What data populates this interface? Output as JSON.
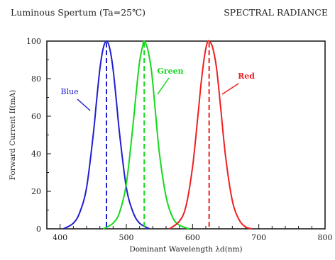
{
  "header": {
    "left_title": "Luminous Spertum (Ta=25℃)",
    "right_title": "SPECTRAL RADIANCE"
  },
  "chart_data": {
    "type": "line",
    "title": "Luminous Spertum (Ta=25℃)",
    "subtitle": "SPECTRAL RADIANCE",
    "xlabel": "Dominant Wavelength λd(nm)",
    "ylabel": "Forward Current If(mA)",
    "xlim": [
      380,
      800
    ],
    "ylim": [
      0,
      100
    ],
    "x_ticks": [
      400,
      500,
      600,
      700,
      800
    ],
    "y_ticks": [
      0,
      20,
      40,
      60,
      80,
      100
    ],
    "grid": false,
    "series": [
      {
        "name": "Blue",
        "color": "#1f1fd0",
        "peak": 470,
        "x": [
          405,
          420,
          430,
          440,
          450,
          455,
          460,
          465,
          470,
          475,
          480,
          485,
          490,
          500,
          510,
          520,
          535
        ],
        "y": [
          0,
          3,
          9,
          22,
          50,
          68,
          85,
          96,
          100,
          96,
          85,
          68,
          50,
          22,
          9,
          3,
          0
        ]
      },
      {
        "name": "Green",
        "color": "#16d81e",
        "peak": 527,
        "x": [
          465,
          480,
          490,
          500,
          510,
          515,
          520,
          525,
          527,
          532,
          538,
          544,
          550,
          560,
          570,
          580,
          595
        ],
        "y": [
          0,
          3,
          9,
          24,
          55,
          73,
          89,
          98,
          100,
          96,
          84,
          62,
          40,
          17,
          6,
          2,
          0
        ]
      },
      {
        "name": "Red",
        "color": "#ef2020",
        "peak": 625,
        "x": [
          565,
          580,
          590,
          600,
          608,
          613,
          618,
          622,
          625,
          630,
          636,
          642,
          650,
          660,
          670,
          680,
          690
        ],
        "y": [
          0,
          4,
          12,
          33,
          60,
          78,
          92,
          99,
          100,
          97,
          86,
          66,
          38,
          15,
          5,
          1,
          0
        ]
      }
    ]
  }
}
